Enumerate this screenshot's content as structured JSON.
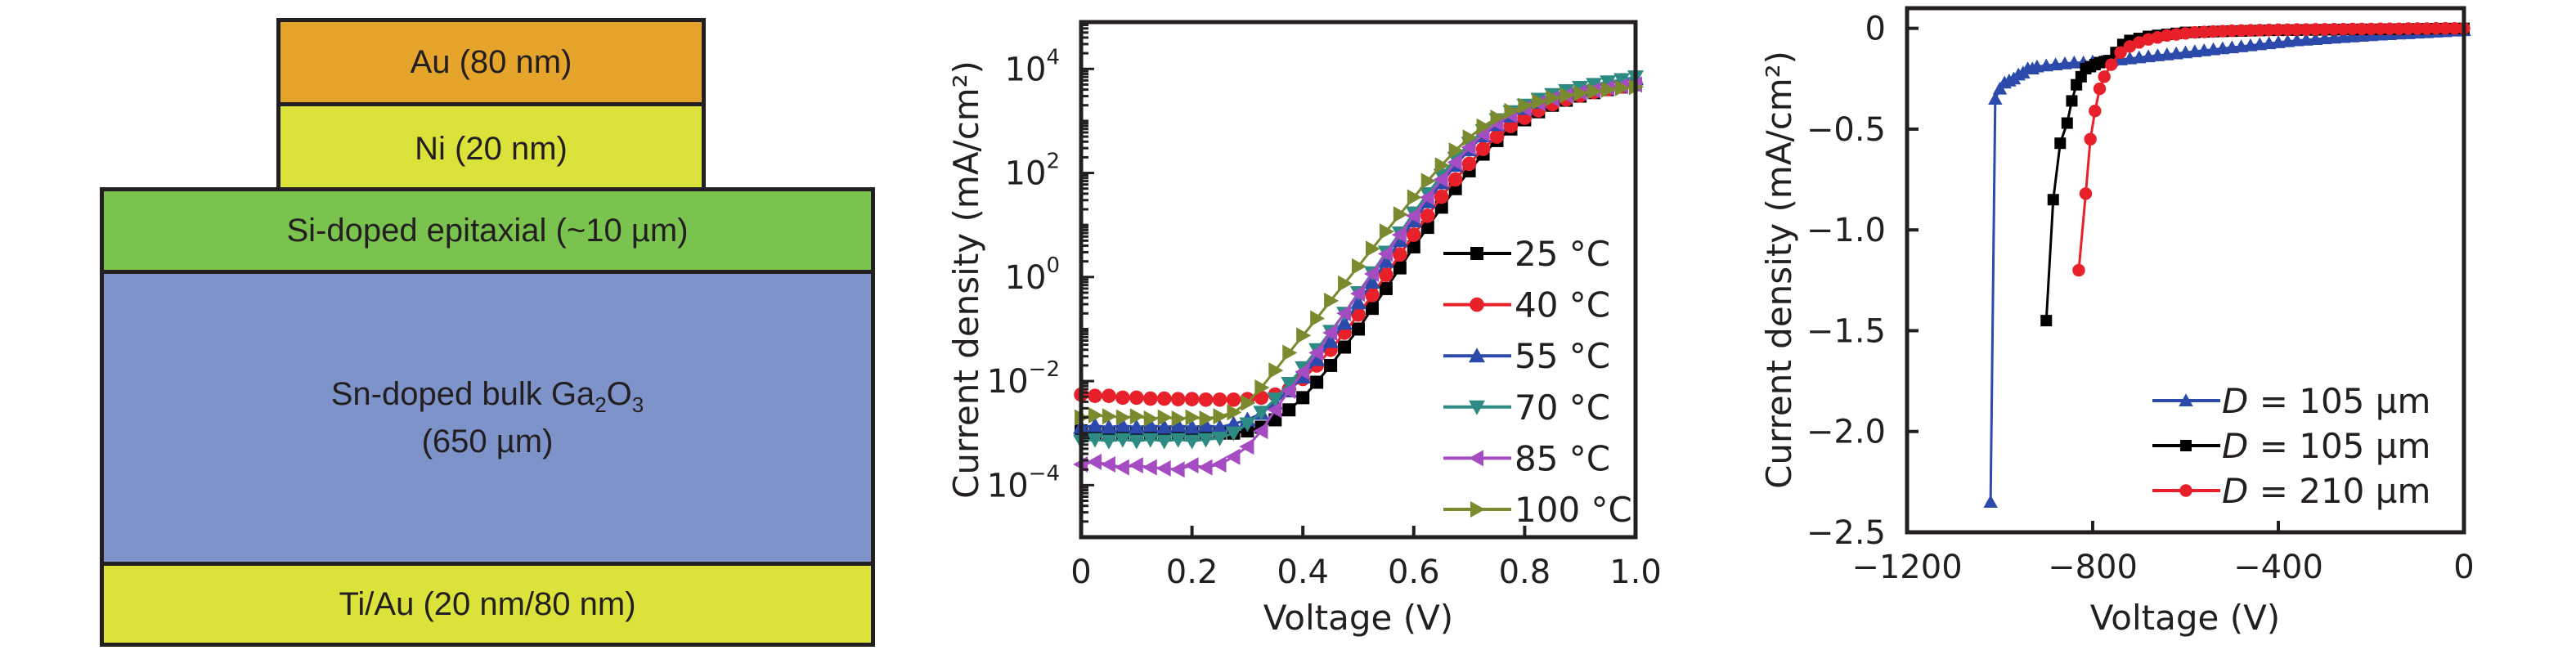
{
  "device_stack": {
    "layers": [
      {
        "id": "au",
        "label": "Au (80 nm)",
        "color": "#e5a52a"
      },
      {
        "id": "ni",
        "label": "Ni (20 nm)",
        "color": "#dbe23a"
      },
      {
        "id": "si",
        "label": "Si-doped epitaxial (~10 µm)",
        "color": "#7bc34f"
      },
      {
        "id": "sn",
        "label_main": "Sn-doped bulk Ga",
        "label_sub1": "2",
        "label_mid": "O",
        "label_sub2": "3",
        "label_line2": "(650 µm)",
        "color": "#7d93c9"
      },
      {
        "id": "ti",
        "label": "Ti/Au (20 nm/80 nm)",
        "color": "#dbe23a"
      }
    ]
  },
  "chart_data": [
    {
      "type": "line",
      "yscale": "log",
      "xlabel": "Voltage (V)",
      "ylabel": "Current density (mA/cm²)",
      "xlim": [
        0,
        1.0
      ],
      "ylim_log10": [
        -5,
        4.9
      ],
      "xticks": [
        0,
        0.2,
        0.4,
        0.6,
        0.8,
        1.0
      ],
      "xtick_labels": [
        "0",
        "0.2",
        "0.4",
        "0.6",
        "0.8",
        "1.0"
      ],
      "yticks_log10": [
        -4,
        -2,
        0,
        2,
        4
      ],
      "ytick_labels": [
        {
          "base": "10",
          "exp": "−4"
        },
        {
          "base": "10",
          "exp": "−2"
        },
        {
          "base": "10",
          "exp": "0"
        },
        {
          "base": "10",
          "exp": "2"
        },
        {
          "base": "10",
          "exp": "4"
        }
      ],
      "legend_position": "right-center",
      "x": [
        0,
        0.025,
        0.05,
        0.075,
        0.1,
        0.125,
        0.15,
        0.175,
        0.2,
        0.225,
        0.25,
        0.275,
        0.3,
        0.325,
        0.35,
        0.375,
        0.4,
        0.425,
        0.45,
        0.475,
        0.5,
        0.525,
        0.55,
        0.575,
        0.6,
        0.625,
        0.65,
        0.675,
        0.7,
        0.725,
        0.75,
        0.775,
        0.8,
        0.825,
        0.85,
        0.875,
        0.9,
        0.925,
        0.95,
        0.975,
        1.0
      ],
      "series": [
        {
          "name": "25 °C",
          "color": "#000000",
          "marker": "square",
          "values": [
            0.0011,
            0.001,
            0.001,
            0.001,
            0.001,
            0.001,
            0.001,
            0.001,
            0.001,
            0.001,
            0.001,
            0.001,
            0.0011,
            0.0013,
            0.0018,
            0.0028,
            0.0048,
            0.0095,
            0.02,
            0.045,
            0.1,
            0.25,
            0.6,
            1.5,
            3.8,
            9,
            22,
            50,
            110,
            230,
            420,
            700,
            1050,
            1500,
            2000,
            2500,
            3000,
            3500,
            4000,
            4500,
            5000
          ]
        },
        {
          "name": "40 °C",
          "color": "#e8202a",
          "marker": "circle",
          "values": [
            0.0055,
            0.0052,
            0.0052,
            0.0048,
            0.0048,
            0.0046,
            0.0046,
            0.0045,
            0.0045,
            0.0044,
            0.0044,
            0.0044,
            0.0045,
            0.0048,
            0.0055,
            0.007,
            0.011,
            0.02,
            0.04,
            0.085,
            0.19,
            0.45,
            1.1,
            2.7,
            6.5,
            15,
            35,
            75,
            150,
            290,
            500,
            800,
            1150,
            1600,
            2100,
            2600,
            3100,
            3600,
            4100,
            4600,
            5200
          ]
        },
        {
          "name": "55 °C",
          "color": "#2b4aab",
          "marker": "triangle-up",
          "values": [
            0.0013,
            0.0014,
            0.0013,
            0.0014,
            0.0013,
            0.0014,
            0.0013,
            0.0014,
            0.0013,
            0.0014,
            0.0013,
            0.0015,
            0.0018,
            0.0024,
            0.0038,
            0.0065,
            0.012,
            0.026,
            0.058,
            0.13,
            0.32,
            0.8,
            2,
            5,
            12,
            28,
            65,
            140,
            280,
            520,
            850,
            1250,
            1750,
            2300,
            2900,
            3500,
            4100,
            4700,
            5300,
            5900,
            6500
          ]
        },
        {
          "name": "70 °C",
          "color": "#2e8b84",
          "marker": "triangle-down",
          "values": [
            0.0007,
            0.00075,
            0.0007,
            0.00075,
            0.0007,
            0.00075,
            0.0007,
            0.00075,
            0.0007,
            0.00075,
            0.0008,
            0.001,
            0.0015,
            0.0025,
            0.0045,
            0.009,
            0.018,
            0.04,
            0.09,
            0.2,
            0.5,
            1.2,
            3,
            7,
            17,
            40,
            90,
            190,
            370,
            650,
            1050,
            1500,
            2000,
            2600,
            3200,
            3800,
            4400,
            5000,
            5600,
            6200,
            7000
          ]
        },
        {
          "name": "85 °C",
          "color": "#a64cc2",
          "marker": "triangle-left",
          "values": [
            0.00025,
            0.00028,
            0.00025,
            0.00022,
            0.00024,
            0.00022,
            0.00021,
            0.0002,
            0.00024,
            0.00022,
            0.00025,
            0.00035,
            0.00055,
            0.0011,
            0.0028,
            0.0065,
            0.015,
            0.035,
            0.085,
            0.2,
            0.48,
            1.15,
            2.8,
            6.5,
            15,
            34,
            75,
            160,
            310,
            560,
            900,
            1300,
            1750,
            2200,
            2700,
            3100,
            3500,
            3900,
            4300,
            4700,
            5000
          ]
        },
        {
          "name": "100 °C",
          "color": "#7b8a2e",
          "marker": "triangle-right",
          "values": [
            0.002,
            0.0022,
            0.0021,
            0.002,
            0.0021,
            0.0019,
            0.002,
            0.0019,
            0.002,
            0.0019,
            0.0021,
            0.0025,
            0.0038,
            0.0075,
            0.016,
            0.035,
            0.075,
            0.16,
            0.35,
            0.75,
            1.6,
            3.5,
            7.5,
            16,
            34,
            70,
            140,
            270,
            480,
            780,
            1150,
            1550,
            1950,
            2350,
            2750,
            3100,
            3400,
            3700,
            4000,
            4300,
            4500
          ]
        }
      ]
    },
    {
      "type": "line",
      "xlabel": "Voltage (V)",
      "ylabel": "Current density (mA/cm²)",
      "xlim": [
        -1200,
        0
      ],
      "ylim": [
        -2.5,
        0.1
      ],
      "xticks": [
        -1200,
        -800,
        -400,
        0
      ],
      "xtick_labels": [
        "−1200",
        "−800",
        "−400",
        "0"
      ],
      "yticks": [
        0,
        -0.5,
        -1.0,
        -1.5,
        -2.0,
        -2.5
      ],
      "ytick_labels": [
        "0",
        "−0.5",
        "−1.0",
        "−1.5",
        "−2.0",
        "−2.5"
      ],
      "legend_position": "bottom-right",
      "series": [
        {
          "name_prefix": "D",
          "name_suffix": " = 105 µm",
          "color": "#2b4aab",
          "marker": "triangle-up",
          "x": [
            -1020,
            -1010,
            -1000,
            -990,
            -980,
            -970,
            -960,
            -950,
            -940,
            -930,
            -920,
            -900,
            -880,
            -860,
            -840,
            -820,
            -800,
            -780,
            -760,
            -740,
            -720,
            -700,
            -680,
            -660,
            -640,
            -620,
            -600,
            -580,
            -560,
            -540,
            -520,
            -500,
            -480,
            -460,
            -440,
            -420,
            -400,
            -380,
            -360,
            -340,
            -320,
            -300,
            -280,
            -260,
            -240,
            -220,
            -200,
            -180,
            -160,
            -140,
            -120,
            -100,
            -80,
            -60,
            -40,
            -20,
            0
          ],
          "y": [
            -2.35,
            -0.35,
            -0.3,
            -0.27,
            -0.26,
            -0.25,
            -0.23,
            -0.22,
            -0.2,
            -0.2,
            -0.19,
            -0.185,
            -0.18,
            -0.175,
            -0.17,
            -0.17,
            -0.165,
            -0.165,
            -0.16,
            -0.155,
            -0.15,
            -0.145,
            -0.14,
            -0.135,
            -0.13,
            -0.125,
            -0.12,
            -0.115,
            -0.11,
            -0.105,
            -0.1,
            -0.095,
            -0.09,
            -0.085,
            -0.08,
            -0.075,
            -0.07,
            -0.065,
            -0.06,
            -0.057,
            -0.054,
            -0.05,
            -0.047,
            -0.044,
            -0.041,
            -0.038,
            -0.035,
            -0.032,
            -0.03,
            -0.027,
            -0.025,
            -0.022,
            -0.02,
            -0.017,
            -0.015,
            -0.012,
            -0.01
          ]
        },
        {
          "name_prefix": "D",
          "name_suffix": " = 105 µm",
          "color": "#000000",
          "marker": "square",
          "x": [
            -900,
            -885,
            -870,
            -855,
            -845,
            -835,
            -825,
            -815,
            -805,
            -795,
            -785,
            -775,
            -765,
            -750,
            -735,
            -720,
            -700,
            -680,
            -660,
            -640,
            -620,
            -600,
            -580,
            -560,
            -540,
            -520,
            -500,
            -480,
            -460,
            -440,
            -420,
            -400,
            -380,
            -360,
            -340,
            -320,
            -300,
            -280,
            -260,
            -240,
            -220,
            -200,
            -180,
            -160,
            -140,
            -120,
            -100,
            -80,
            -60,
            -40,
            -20,
            0
          ],
          "y": [
            -1.45,
            -0.85,
            -0.57,
            -0.47,
            -0.36,
            -0.28,
            -0.24,
            -0.2,
            -0.19,
            -0.18,
            -0.17,
            -0.165,
            -0.16,
            -0.12,
            -0.08,
            -0.06,
            -0.05,
            -0.04,
            -0.035,
            -0.03,
            -0.025,
            -0.02,
            -0.02,
            -0.018,
            -0.016,
            -0.015,
            -0.014,
            -0.013,
            -0.012,
            -0.011,
            -0.01,
            -0.01,
            -0.009,
            -0.009,
            -0.008,
            -0.008,
            -0.007,
            -0.007,
            -0.006,
            -0.006,
            -0.005,
            -0.005,
            -0.005,
            -0.004,
            -0.004,
            -0.003,
            -0.003,
            -0.002,
            -0.002,
            -0.001,
            -0.001,
            0
          ]
        },
        {
          "name_prefix": "D",
          "name_suffix": " = 210 µm",
          "color": "#e8202a",
          "marker": "circle",
          "x": [
            -830,
            -815,
            -805,
            -795,
            -785,
            -775,
            -760,
            -740,
            -720,
            -700,
            -680,
            -660,
            -640,
            -620,
            -600,
            -580,
            -560,
            -540,
            -520,
            -500,
            -480,
            -460,
            -440,
            -420,
            -400,
            -380,
            -360,
            -340,
            -320,
            -300,
            -280,
            -260,
            -240,
            -220,
            -200,
            -180,
            -160,
            -140,
            -120,
            -100,
            -80,
            -60,
            -40,
            -20,
            0
          ],
          "y": [
            -1.2,
            -0.82,
            -0.55,
            -0.41,
            -0.3,
            -0.24,
            -0.18,
            -0.12,
            -0.09,
            -0.07,
            -0.055,
            -0.045,
            -0.035,
            -0.03,
            -0.025,
            -0.02,
            -0.018,
            -0.016,
            -0.014,
            -0.012,
            -0.011,
            -0.01,
            -0.009,
            -0.008,
            -0.007,
            -0.007,
            -0.006,
            -0.006,
            -0.005,
            -0.005,
            -0.004,
            -0.004,
            -0.003,
            -0.003,
            -0.003,
            -0.002,
            -0.002,
            -0.002,
            -0.001,
            -0.001,
            -0.001,
            0,
            0,
            0,
            0
          ]
        }
      ]
    }
  ]
}
